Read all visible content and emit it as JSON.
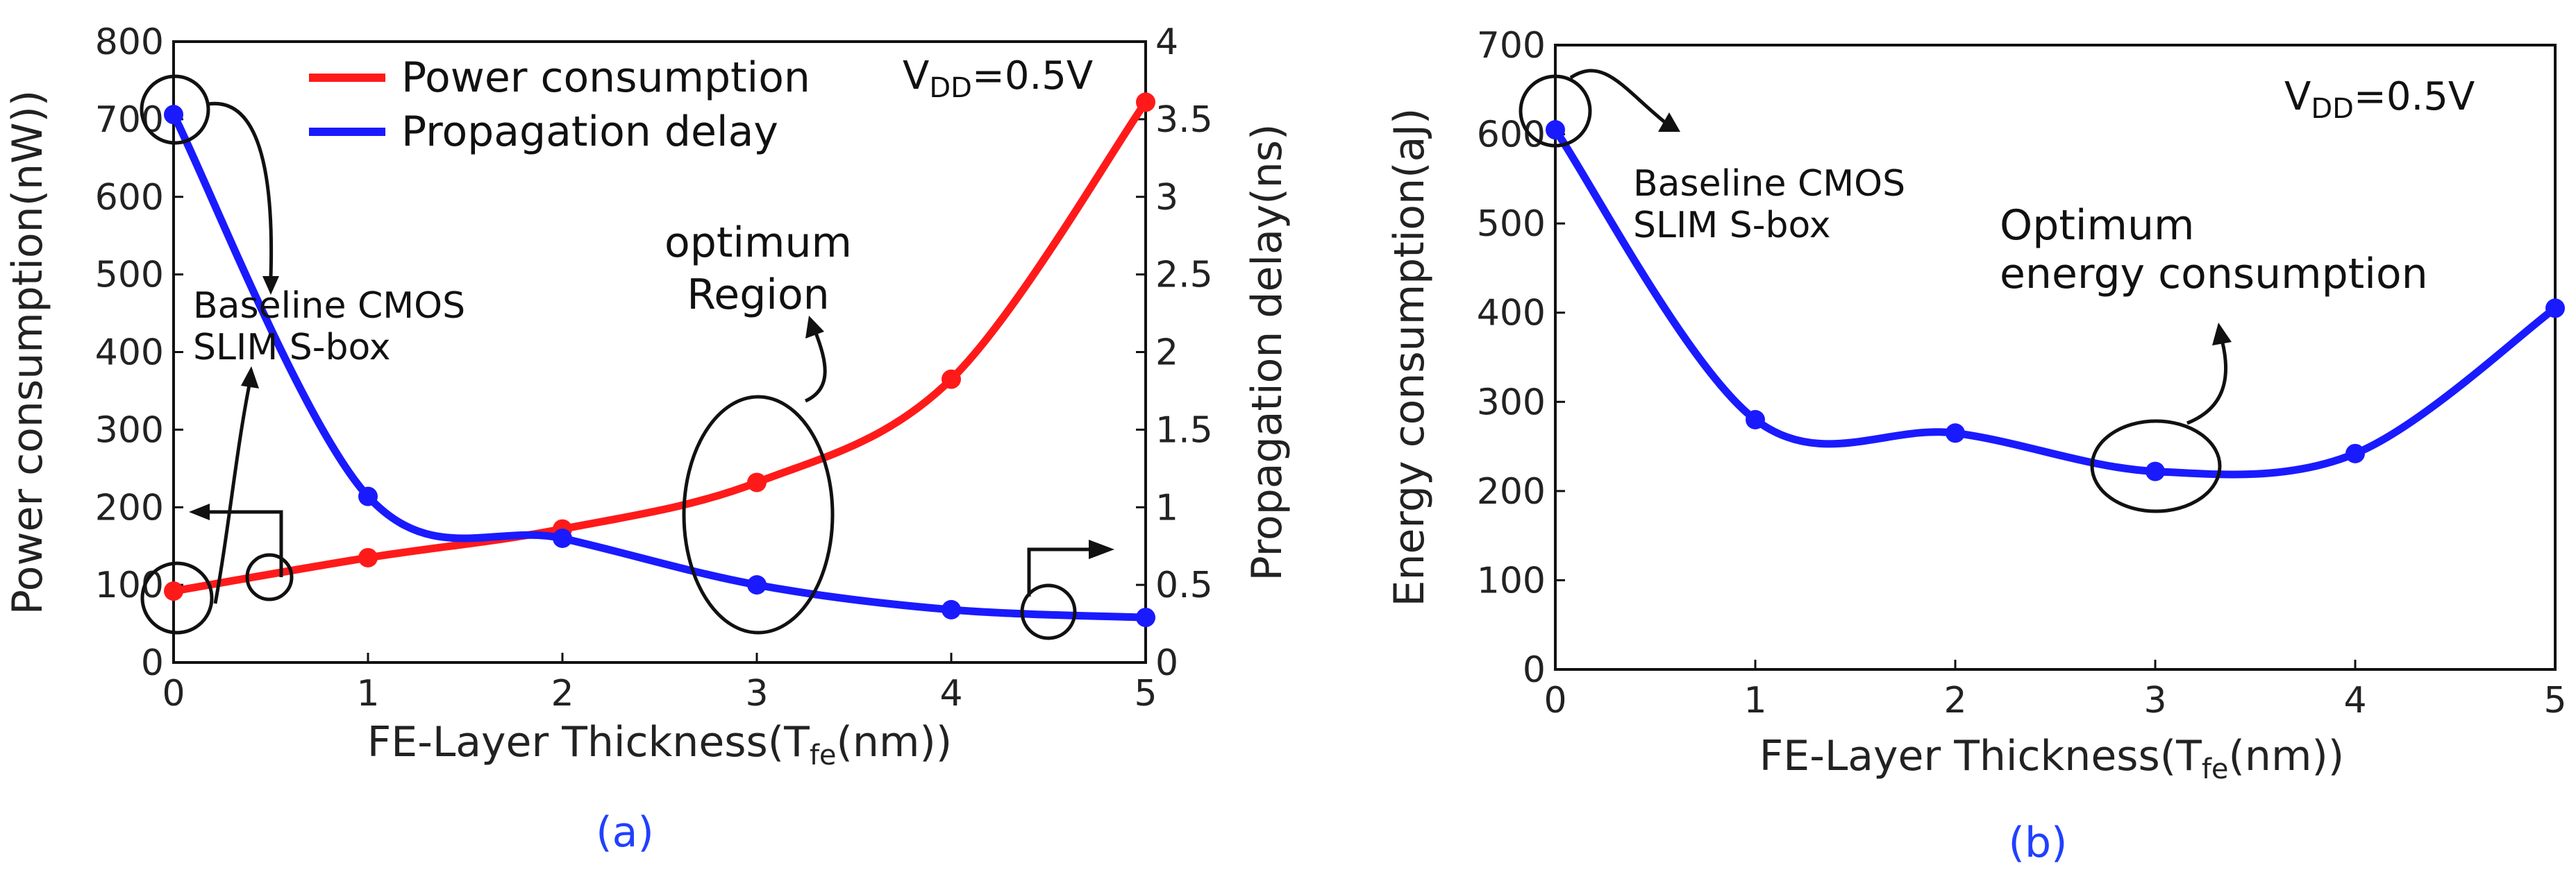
{
  "chart_data": [
    {
      "type": "line",
      "subplot_label": "(a)",
      "xlabel": "FE-Layer Thickness(T",
      "xlabel_sub": "fe",
      "xlabel_end": "(nm))",
      "ylabel_left": "Power consumption(nW))",
      "ylabel_right": "Propagation delay(ns)",
      "xlim": [
        0,
        5
      ],
      "ylim_left": [
        0,
        800
      ],
      "ylim_right": [
        0,
        4
      ],
      "x_ticks": [
        "0",
        "1",
        "2",
        "3",
        "4",
        "5"
      ],
      "y_left_ticks": [
        "0",
        "100",
        "200",
        "300",
        "400",
        "500",
        "600",
        "700",
        "800"
      ],
      "y_right_ticks": [
        "0",
        "0.5",
        "1",
        "1.5",
        "2",
        "2.5",
        "3",
        "3.5",
        "4"
      ],
      "legend_placement": "top-center",
      "vdd_label": "V",
      "vdd_sub": "DD",
      "vdd_value": "=0.5V",
      "series": [
        {
          "name": "Power consumption",
          "axis": "left",
          "color": "#ff1a1a",
          "x": [
            0,
            1,
            2,
            3,
            4,
            5
          ],
          "values": [
            92,
            135,
            172,
            232,
            365,
            722
          ]
        },
        {
          "name": "Propagation delay",
          "axis": "right",
          "color": "#1a1aff",
          "x": [
            0,
            1,
            2,
            3,
            4,
            5
          ],
          "values": [
            3.53,
            1.07,
            0.8,
            0.5,
            0.34,
            0.29
          ]
        }
      ],
      "annotations": {
        "baseline_line1": "Baseline CMOS",
        "baseline_line2": "SLIM S-box",
        "optimum_line1": "optimum",
        "optimum_line2": "Region"
      }
    },
    {
      "type": "line",
      "subplot_label": "(b)",
      "xlabel": "FE-Layer Thickness(T",
      "xlabel_sub": "fe",
      "xlabel_end": "(nm))",
      "ylabel": "Energy consumption(aJ)",
      "xlim": [
        0,
        5
      ],
      "ylim": [
        0,
        700
      ],
      "x_ticks": [
        "0",
        "1",
        "2",
        "3",
        "4",
        "5"
      ],
      "y_ticks": [
        "0",
        "100",
        "200",
        "300",
        "400",
        "500",
        "600",
        "700"
      ],
      "vdd_label": "V",
      "vdd_sub": "DD",
      "vdd_value": "=0.5V",
      "series": [
        {
          "color": "#1a1aff",
          "x": [
            0,
            1,
            2,
            3,
            4,
            5
          ],
          "values": [
            605,
            280,
            265,
            222,
            242,
            405
          ]
        }
      ],
      "annotations": {
        "baseline_line1": "Baseline CMOS",
        "baseline_line2": "SLIM S-box",
        "optimum_line1": "Optimum",
        "optimum_line2": "energy consumption"
      }
    }
  ]
}
